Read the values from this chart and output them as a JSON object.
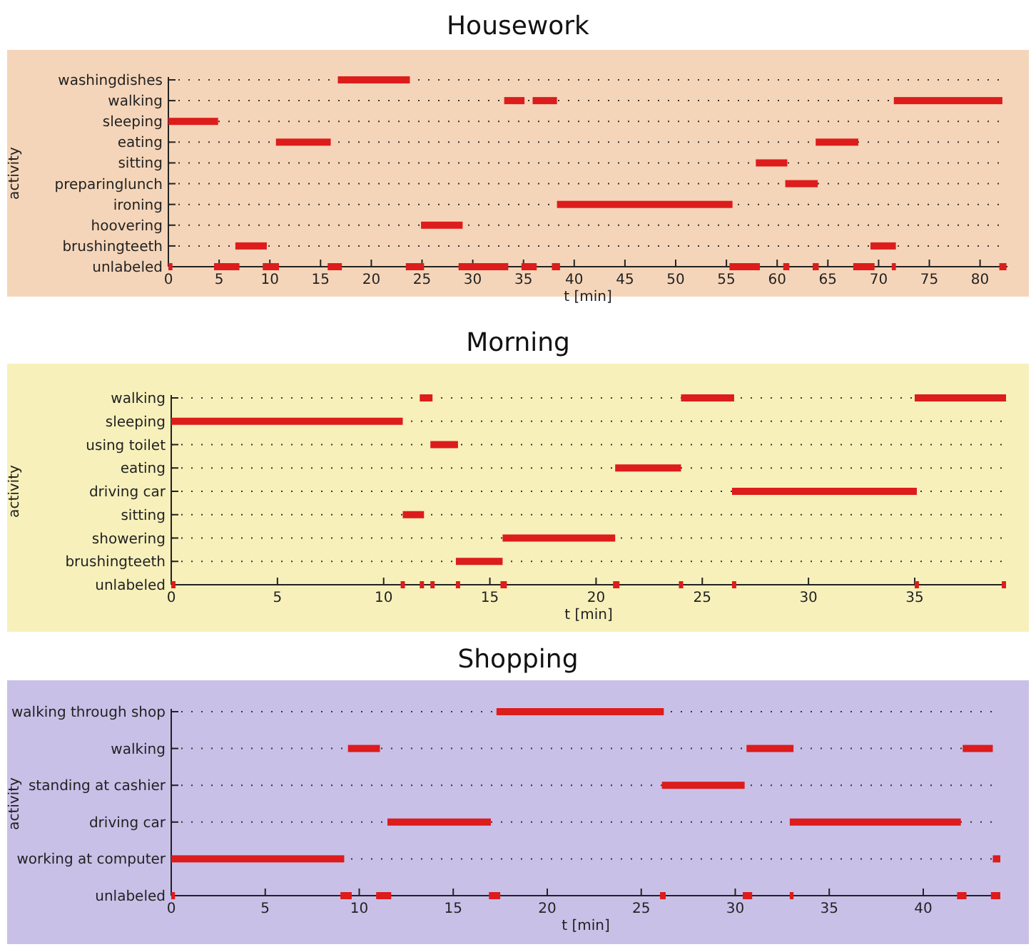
{
  "chart_data": [
    {
      "type": "bar",
      "orientation": "horizontal",
      "title": "Housework",
      "xlabel": "t [min]",
      "ylabel": "activity",
      "grid": "y",
      "line_style": "dotted",
      "categories": [
        "washingdishes",
        "walking",
        "sleeping",
        "eating",
        "sitting",
        "preparinglunch",
        "ironing",
        "hoovering",
        "brushingteeth",
        "unlabeled"
      ],
      "xlim": [
        0,
        82.7
      ],
      "xticks": [
        0,
        5,
        10,
        15,
        20,
        25,
        30,
        35,
        40,
        45,
        50,
        55,
        60,
        65,
        70,
        75,
        80
      ],
      "series": [
        {
          "color": "#dd1c1c",
          "base": [
            16.7,
            33.1,
            0,
            10.6,
            57.9,
            60.8,
            38.3,
            24.9,
            6.6,
            0
          ],
          "values": [
            7.1,
            2.0,
            4.9,
            5.4,
            3.1,
            3.2,
            17.3,
            4.1,
            3.1,
            0.4
          ]
        },
        {
          "color": "#dd1c1c",
          "base": [
            null,
            35.9,
            null,
            63.8,
            null,
            null,
            null,
            null,
            69.2,
            4.5
          ],
          "values": [
            null,
            2.4,
            null,
            4.2,
            null,
            null,
            null,
            null,
            2.5,
            2.5
          ]
        },
        {
          "color": "#dd1c1c",
          "base": [
            null,
            71.5,
            null,
            null,
            null,
            null,
            null,
            null,
            null,
            9.3
          ],
          "values": [
            null,
            10.7,
            null,
            null,
            null,
            null,
            null,
            null,
            null,
            1.6
          ]
        },
        {
          "color": "#dd1c1c",
          "base": [
            null,
            null,
            null,
            null,
            null,
            null,
            null,
            null,
            null,
            15.7
          ],
          "values": [
            null,
            null,
            null,
            null,
            null,
            null,
            null,
            null,
            null,
            1.4
          ]
        },
        {
          "color": "#dd1c1c",
          "base": [
            null,
            null,
            null,
            null,
            null,
            null,
            null,
            null,
            null,
            23.4
          ],
          "values": [
            null,
            null,
            null,
            null,
            null,
            null,
            null,
            null,
            null,
            1.8
          ]
        },
        {
          "color": "#dd1c1c",
          "base": [
            null,
            null,
            null,
            null,
            null,
            null,
            null,
            null,
            null,
            28.6
          ],
          "values": [
            null,
            null,
            null,
            null,
            null,
            null,
            null,
            null,
            null,
            4.9
          ]
        },
        {
          "color": "#dd1c1c",
          "base": [
            null,
            null,
            null,
            null,
            null,
            null,
            null,
            null,
            null,
            34.8
          ],
          "values": [
            null,
            null,
            null,
            null,
            null,
            null,
            null,
            null,
            null,
            1.5
          ]
        },
        {
          "color": "#dd1c1c",
          "base": [
            null,
            null,
            null,
            null,
            null,
            null,
            null,
            null,
            null,
            37.8
          ],
          "values": [
            null,
            null,
            null,
            null,
            null,
            null,
            null,
            null,
            null,
            0.8
          ]
        },
        {
          "color": "#dd1c1c",
          "base": [
            null,
            null,
            null,
            null,
            null,
            null,
            null,
            null,
            null,
            55.3
          ],
          "values": [
            null,
            null,
            null,
            null,
            null,
            null,
            null,
            null,
            null,
            3.0
          ]
        },
        {
          "color": "#dd1c1c",
          "base": [
            null,
            null,
            null,
            null,
            null,
            null,
            null,
            null,
            null,
            60.6
          ],
          "values": [
            null,
            null,
            null,
            null,
            null,
            null,
            null,
            null,
            null,
            0.6
          ]
        },
        {
          "color": "#dd1c1c",
          "base": [
            null,
            null,
            null,
            null,
            null,
            null,
            null,
            null,
            null,
            63.5
          ],
          "values": [
            null,
            null,
            null,
            null,
            null,
            null,
            null,
            null,
            null,
            0.6
          ]
        },
        {
          "color": "#dd1c1c",
          "base": [
            null,
            null,
            null,
            null,
            null,
            null,
            null,
            null,
            null,
            67.5
          ],
          "values": [
            null,
            null,
            null,
            null,
            null,
            null,
            null,
            null,
            null,
            2.1
          ]
        },
        {
          "color": "#dd1c1c",
          "base": [
            null,
            null,
            null,
            null,
            null,
            null,
            null,
            null,
            null,
            71.3
          ],
          "values": [
            null,
            null,
            null,
            null,
            null,
            null,
            null,
            null,
            null,
            0.4
          ]
        },
        {
          "color": "#dd1c1c",
          "base": [
            null,
            null,
            null,
            null,
            null,
            null,
            null,
            null,
            null,
            81.9
          ],
          "values": [
            null,
            null,
            null,
            null,
            null,
            null,
            null,
            null,
            null,
            0.7
          ]
        }
      ]
    },
    {
      "type": "bar",
      "orientation": "horizontal",
      "title": "Morning",
      "xlabel": "t [min]",
      "ylabel": "activity",
      "grid": "y",
      "line_style": "dotted",
      "categories": [
        "walking",
        "sleeping",
        "using toilet",
        "eating",
        "driving car",
        "sitting",
        "showering",
        "brushingteeth",
        "unlabeled"
      ],
      "xlim": [
        0,
        39.3
      ],
      "xticks": [
        0,
        5,
        10,
        15,
        20,
        25,
        30,
        35
      ],
      "series": [
        {
          "color": "#dd1c1c",
          "base": [
            11.7,
            0,
            12.2,
            20.9,
            26.4,
            10.9,
            15.6,
            13.4,
            0
          ],
          "values": [
            0.6,
            10.9,
            1.3,
            3.1,
            8.7,
            1.0,
            5.3,
            2.2,
            0.2
          ]
        },
        {
          "color": "#dd1c1c",
          "base": [
            24.0,
            null,
            null,
            null,
            null,
            null,
            null,
            null,
            10.8
          ],
          "values": [
            2.5,
            null,
            null,
            null,
            null,
            null,
            null,
            null,
            0.2
          ]
        },
        {
          "color": "#dd1c1c",
          "base": [
            35.0,
            null,
            null,
            null,
            null,
            null,
            null,
            null,
            11.7
          ],
          "values": [
            4.3,
            null,
            null,
            null,
            null,
            null,
            null,
            null,
            0.2
          ]
        },
        {
          "color": "#dd1c1c",
          "base": [
            null,
            null,
            null,
            null,
            null,
            null,
            null,
            null,
            12.2
          ],
          "values": [
            null,
            null,
            null,
            null,
            null,
            null,
            null,
            null,
            0.2
          ]
        },
        {
          "color": "#dd1c1c",
          "base": [
            null,
            null,
            null,
            null,
            null,
            null,
            null,
            null,
            13.4
          ],
          "values": [
            null,
            null,
            null,
            null,
            null,
            null,
            null,
            null,
            0.2
          ]
        },
        {
          "color": "#dd1c1c",
          "base": [
            null,
            null,
            null,
            null,
            null,
            null,
            null,
            null,
            15.5
          ],
          "values": [
            null,
            null,
            null,
            null,
            null,
            null,
            null,
            null,
            0.3
          ]
        },
        {
          "color": "#dd1c1c",
          "base": [
            null,
            null,
            null,
            null,
            null,
            null,
            null,
            null,
            20.8
          ],
          "values": [
            null,
            null,
            null,
            null,
            null,
            null,
            null,
            null,
            0.3
          ]
        },
        {
          "color": "#dd1c1c",
          "base": [
            null,
            null,
            null,
            null,
            null,
            null,
            null,
            null,
            23.9
          ],
          "values": [
            null,
            null,
            null,
            null,
            null,
            null,
            null,
            null,
            0.2
          ]
        },
        {
          "color": "#dd1c1c",
          "base": [
            null,
            null,
            null,
            null,
            null,
            null,
            null,
            null,
            26.4
          ],
          "values": [
            null,
            null,
            null,
            null,
            null,
            null,
            null,
            null,
            0.2
          ]
        },
        {
          "color": "#dd1c1c",
          "base": [
            null,
            null,
            null,
            null,
            null,
            null,
            null,
            null,
            35.0
          ],
          "values": [
            null,
            null,
            null,
            null,
            null,
            null,
            null,
            null,
            0.2
          ]
        },
        {
          "color": "#dd1c1c",
          "base": [
            null,
            null,
            null,
            null,
            null,
            null,
            null,
            null,
            39.1
          ],
          "values": [
            null,
            null,
            null,
            null,
            null,
            null,
            null,
            null,
            0.2
          ]
        }
      ]
    },
    {
      "type": "bar",
      "orientation": "horizontal",
      "title": "Shopping",
      "xlabel": "t [min]",
      "ylabel": "activity",
      "grid": "y",
      "line_style": "dotted",
      "categories": [
        "walking through shop",
        "walking",
        "standing at cashier",
        "driving car",
        "working at computer",
        "unlabeled"
      ],
      "xlim": [
        0,
        44.1
      ],
      "xticks": [
        0,
        5,
        10,
        15,
        20,
        25,
        30,
        35,
        40
      ],
      "series": [
        {
          "color": "#dd1c1c",
          "base": [
            17.3,
            9.4,
            26.1,
            11.5,
            0,
            0
          ],
          "values": [
            8.9,
            1.7,
            4.4,
            5.5,
            9.2,
            0.2
          ]
        },
        {
          "color": "#dd1c1c",
          "base": [
            null,
            30.6,
            null,
            32.9,
            43.7,
            9.0
          ],
          "values": [
            null,
            2.5,
            null,
            9.1,
            0.4,
            0.6
          ]
        },
        {
          "color": "#dd1c1c",
          "base": [
            null,
            42.1,
            null,
            null,
            null,
            10.9
          ],
          "values": [
            null,
            1.6,
            null,
            null,
            null,
            0.8
          ]
        },
        {
          "color": "#dd1c1c",
          "base": [
            null,
            null,
            null,
            null,
            null,
            16.9
          ],
          "values": [
            null,
            null,
            null,
            null,
            null,
            0.6
          ]
        },
        {
          "color": "#dd1c1c",
          "base": [
            null,
            null,
            null,
            null,
            null,
            26.0
          ],
          "values": [
            null,
            null,
            null,
            null,
            null,
            0.3
          ]
        },
        {
          "color": "#dd1c1c",
          "base": [
            null,
            null,
            null,
            null,
            null,
            30.4
          ],
          "values": [
            null,
            null,
            null,
            null,
            null,
            0.5
          ]
        },
        {
          "color": "#dd1c1c",
          "base": [
            null,
            null,
            null,
            null,
            null,
            32.9
          ],
          "values": [
            null,
            null,
            null,
            null,
            null,
            0.2
          ]
        },
        {
          "color": "#dd1c1c",
          "base": [
            null,
            null,
            null,
            null,
            null,
            41.8
          ],
          "values": [
            null,
            null,
            null,
            null,
            null,
            0.5
          ]
        },
        {
          "color": "#dd1c1c",
          "base": [
            null,
            null,
            null,
            null,
            null,
            43.6
          ],
          "values": [
            null,
            null,
            null,
            null,
            null,
            0.5
          ]
        }
      ]
    }
  ]
}
